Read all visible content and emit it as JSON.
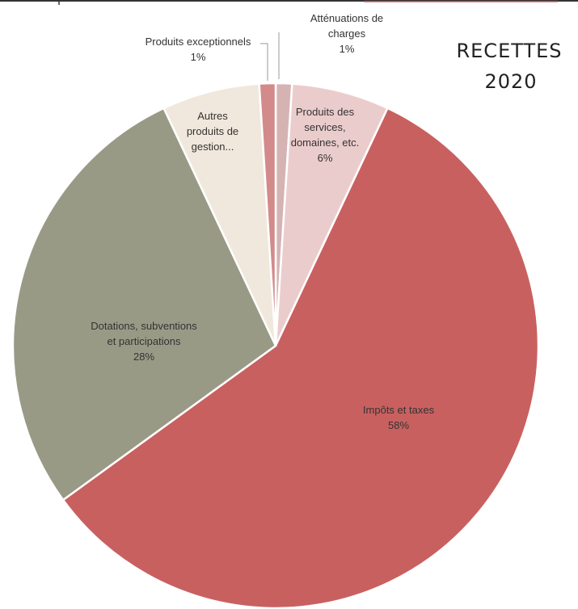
{
  "chart_data": {
    "type": "pie",
    "title_lines": [
      "RECETTES",
      "2020"
    ],
    "slices": [
      {
        "label_lines": [
          "Atténuations de",
          "charges"
        ],
        "value": 1,
        "display": "1%",
        "color": "#d6b3b3"
      },
      {
        "label_lines": [
          "Produits des",
          "services,",
          "domaines, etc."
        ],
        "value": 6,
        "display": "6%",
        "color": "#ebcccc"
      },
      {
        "label_lines": [
          "Impôts et taxes"
        ],
        "value": 58,
        "display": "58%",
        "color": "#c96060"
      },
      {
        "label_lines": [
          "Dotations, subventions",
          "et participations"
        ],
        "value": 28,
        "display": "28%",
        "color": "#999a86"
      },
      {
        "label_lines": [
          "Autres",
          "produits de",
          "gestion..."
        ],
        "value": 6,
        "display": "",
        "color": "#f0e8dc"
      },
      {
        "label_lines": [
          "Produits exceptionnels"
        ],
        "value": 1,
        "display": "1%",
        "color": "#d38a8a"
      }
    ]
  }
}
